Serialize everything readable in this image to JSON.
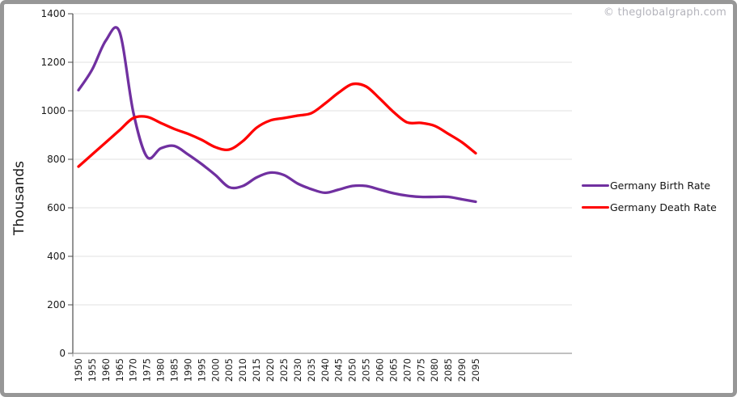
{
  "watermark": {
    "text": "© theglobalgraph.com",
    "color": "#b4b4bc"
  },
  "chart_data": {
    "type": "line",
    "title": "",
    "xlabel": "",
    "ylabel": "Thousands",
    "ylim": [
      0,
      1400
    ],
    "yticks": [
      0,
      200,
      400,
      600,
      800,
      1000,
      1200,
      1400
    ],
    "grid": true,
    "smooth_lines": true,
    "legend_position": "right",
    "x_tick_rotation_degrees": -90,
    "categories": [
      "1950",
      "1955",
      "1960",
      "1965",
      "1970",
      "1975",
      "1980",
      "1985",
      "1990",
      "1995",
      "2000",
      "2005",
      "2010",
      "2015",
      "2020",
      "2025",
      "2030",
      "2035",
      "2040",
      "2045",
      "2050",
      "2055",
      "2060",
      "2065",
      "2070",
      "2075",
      "2080",
      "2085",
      "2090",
      "2095"
    ],
    "series": [
      {
        "name": "Germany Birth Rate",
        "color": "#7030A0",
        "values": [
          1085,
          1170,
          1290,
          1325,
          995,
          810,
          845,
          855,
          820,
          780,
          735,
          685,
          690,
          725,
          745,
          735,
          700,
          677,
          662,
          675,
          690,
          690,
          675,
          660,
          650,
          645,
          645,
          645,
          635,
          625
        ]
      },
      {
        "name": "Germany Death Rate",
        "color": "#FF0000",
        "values": [
          770,
          820,
          870,
          920,
          970,
          975,
          950,
          925,
          905,
          880,
          850,
          840,
          875,
          930,
          960,
          970,
          980,
          990,
          1030,
          1075,
          1110,
          1100,
          1050,
          995,
          952,
          950,
          938,
          905,
          870,
          825
        ]
      }
    ],
    "colors": {
      "gridline": "#e2e2e2",
      "y_axis": "#4d4d4d",
      "x_axis": "#9a9a9a",
      "tick_text": "#1a1a1a",
      "frame_border": "#979797"
    }
  }
}
